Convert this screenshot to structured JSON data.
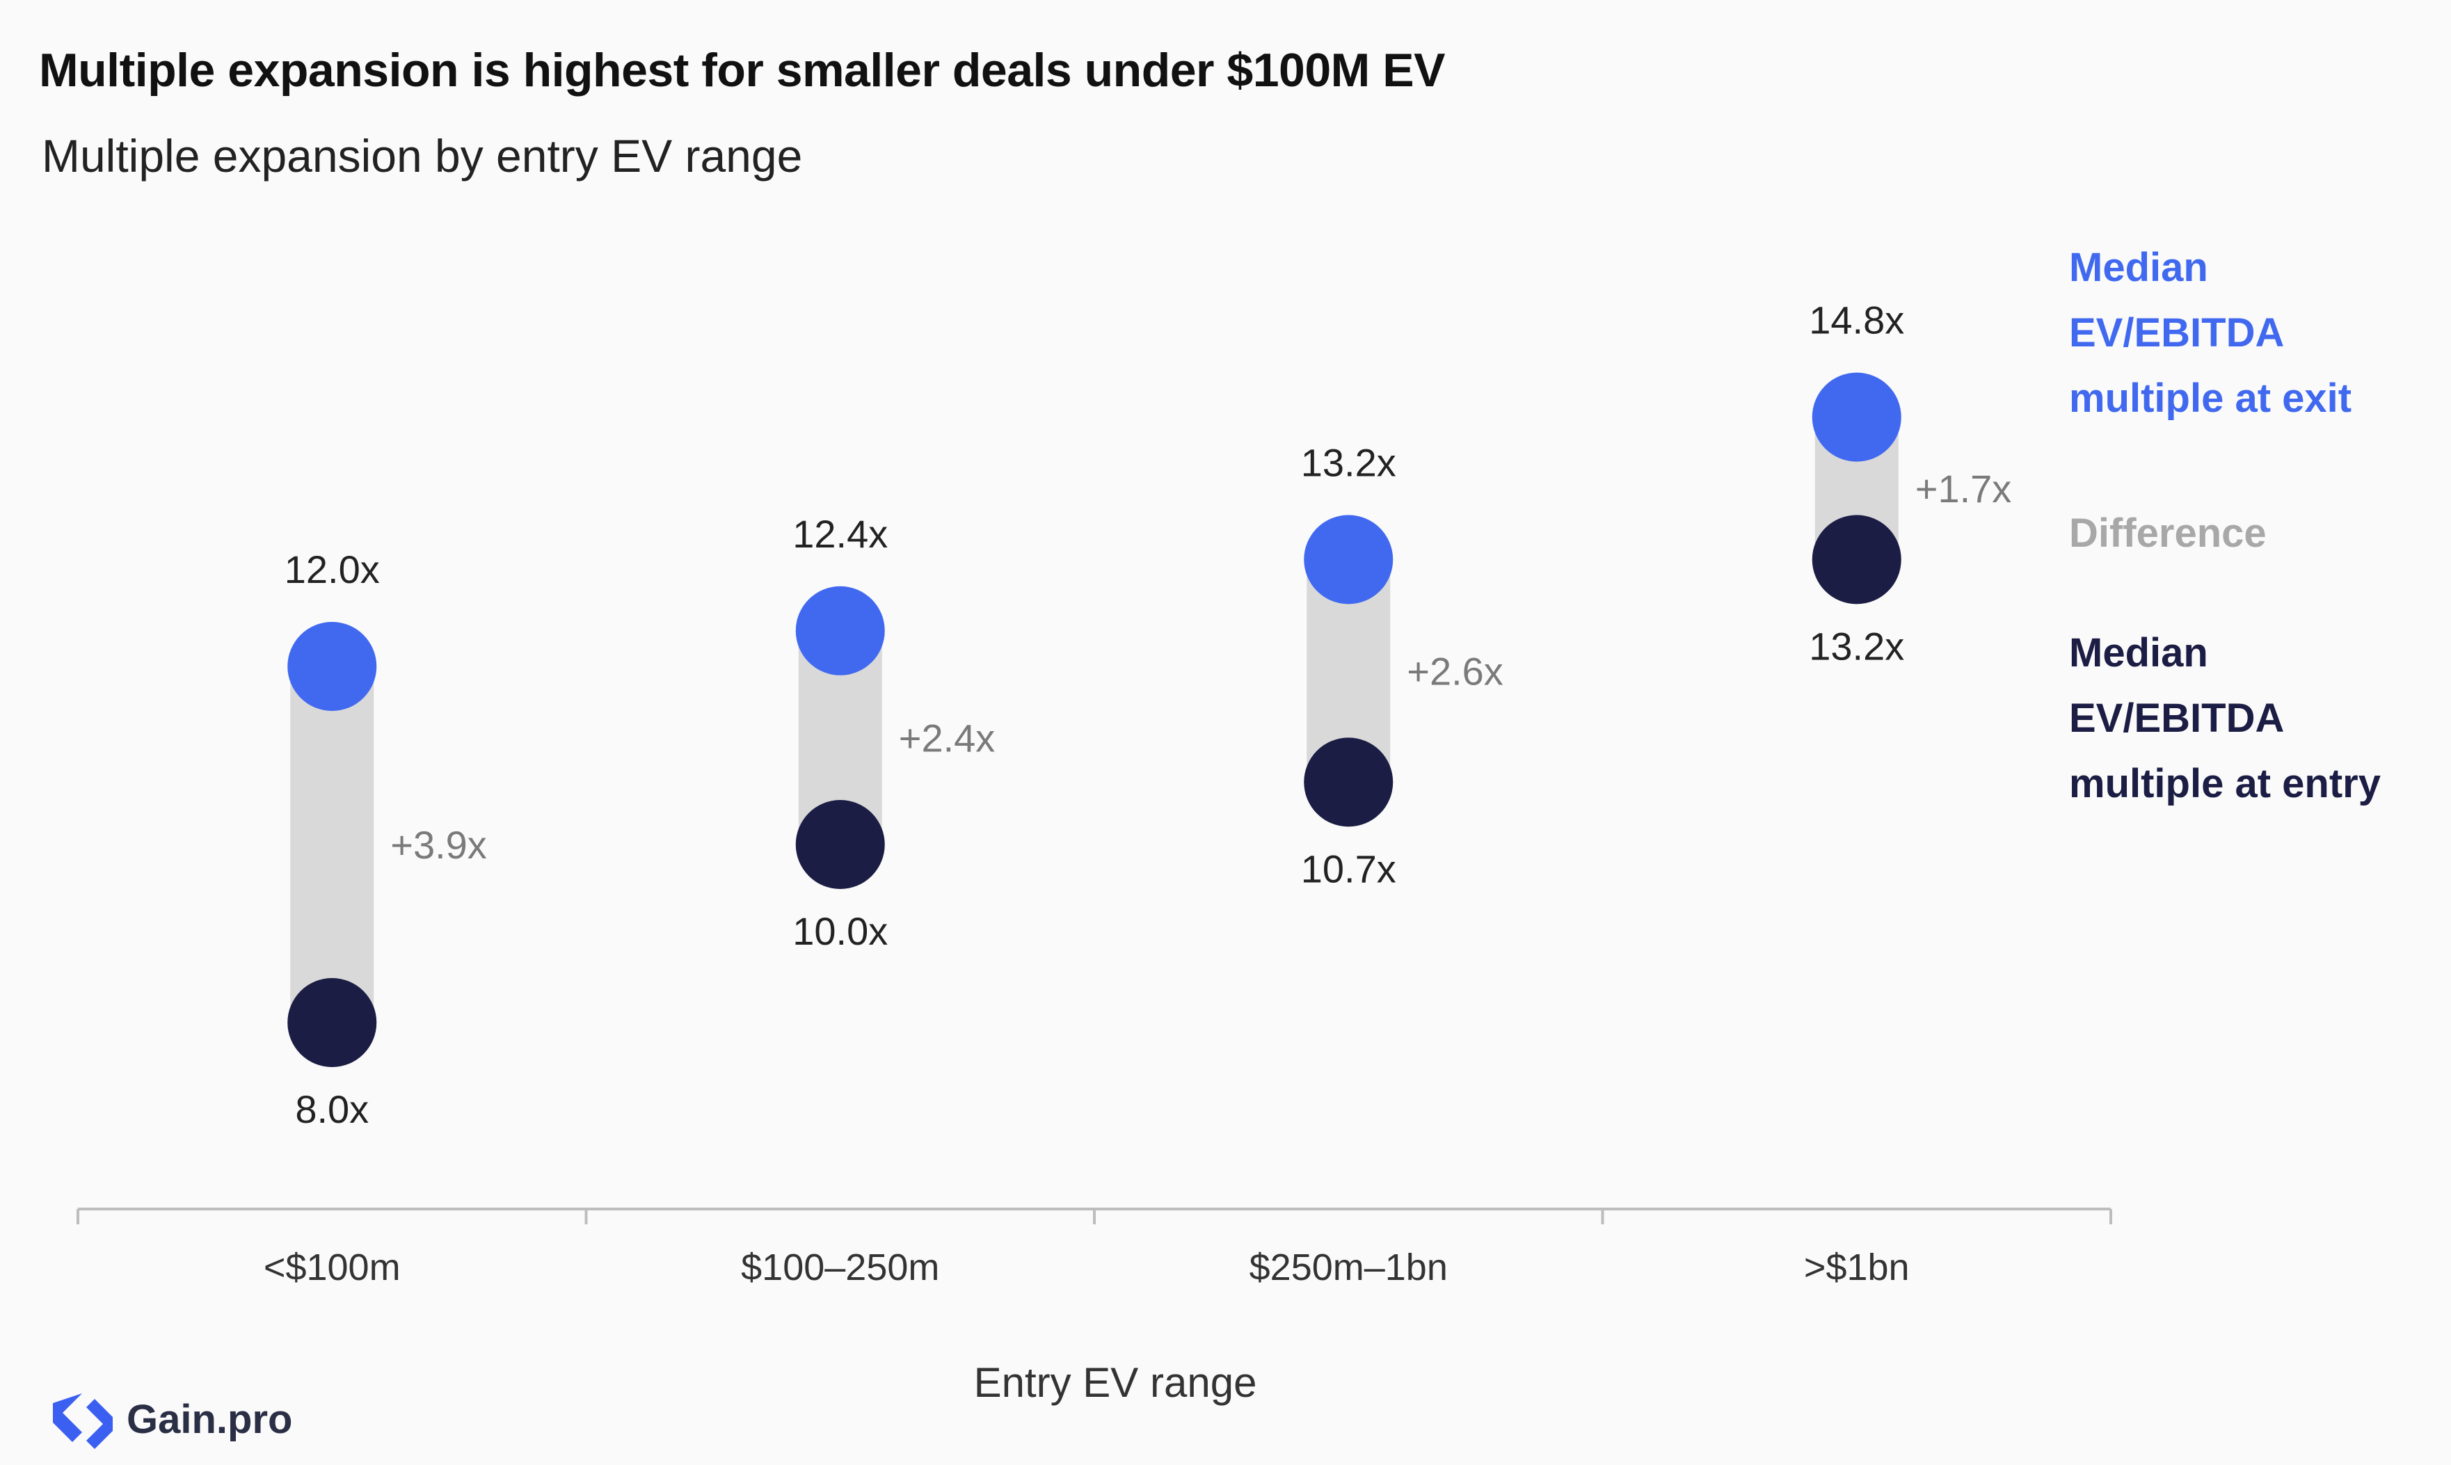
{
  "title": "Multiple expansion is highest for smaller deals under $100M EV",
  "subtitle": "Multiple expansion by entry EV range",
  "legend": {
    "exit_lines": [
      "Median",
      "EV/EBITDA",
      "multiple at exit"
    ],
    "difference": "Difference",
    "entry_lines": [
      "Median",
      "EV/EBITDA",
      "multiple at entry"
    ]
  },
  "logo": {
    "text": "Gain.pro",
    "icon": "gain-pro-logo-icon"
  },
  "colors": {
    "exit": "#4169f0",
    "entry": "#1c1d44",
    "difference_bar": "#d9d9d9",
    "difference_text": "#7a7a7a",
    "axis": "#bdbdbd"
  },
  "chart_data": {
    "type": "dumbbell",
    "categories": [
      "<$100m",
      "$100–250m",
      "$250m–1bn",
      ">$1bn"
    ],
    "series": [
      {
        "name": "Median EV/EBITDA multiple at entry",
        "values": [
          8.0,
          10.0,
          10.7,
          13.2
        ],
        "labels": [
          "8.0x",
          "10.0x",
          "10.7x",
          "13.2x"
        ]
      },
      {
        "name": "Median EV/EBITDA multiple at exit",
        "values": [
          12.0,
          12.4,
          13.2,
          14.8
        ],
        "labels": [
          "12.0x",
          "12.4x",
          "13.2x",
          "14.8x"
        ]
      }
    ],
    "difference_labels": [
      "+3.9x",
      "+2.4x",
      "+2.6x",
      "+1.7x"
    ],
    "xlabel": "Entry EV range",
    "ylabel": "",
    "ylim": [
      7,
      16
    ],
    "grid": false,
    "legend_position": "right"
  }
}
